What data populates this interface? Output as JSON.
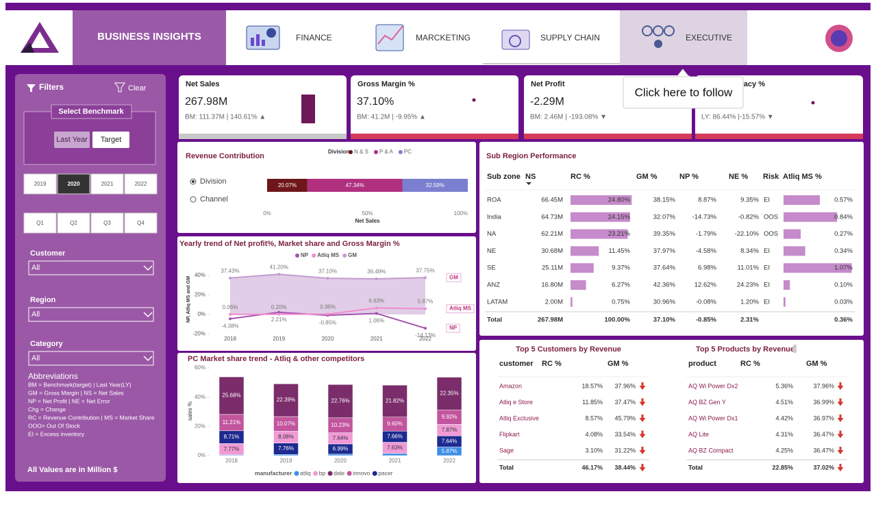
{
  "header": {
    "title": "BUSINESS INSIGHTS",
    "tabs": [
      "FINANCE",
      "MARCKETING",
      "SUPPLY CHAIN",
      "EXECUTIVE"
    ],
    "tooltip": "Click here to follow"
  },
  "filters": {
    "title": "Filters",
    "clear": "Clear",
    "benchmark_title": "Select Benchmark",
    "benchmark_options": [
      "Last Year",
      "Target"
    ],
    "years": [
      "2019",
      "2020",
      "2021",
      "2022"
    ],
    "selected_year": "2020",
    "quarters": [
      "Q1",
      "Q2",
      "Q3",
      "Q4"
    ],
    "dropdowns": [
      {
        "label": "Customer",
        "value": "All"
      },
      {
        "label": "Region",
        "value": "All"
      },
      {
        "label": "Category",
        "value": "All"
      }
    ],
    "abbreviations_title": "Abbreviations",
    "abbreviations": [
      "BM = Benchmark(target) | Last Year(LY)",
      "GM = Gross Margin | NS = Net Sales",
      "NP = Net Profit | NE = Net Error",
      "Chg = Change",
      "RC = Revenue Contribution | MS = Market Share",
      "OOO= Out Of Stock",
      "EI = Excess inventory"
    ],
    "footnote": "All Values are in Million $"
  },
  "kpis": [
    {
      "title": "Net Sales",
      "value": "267.98M",
      "comparison": "BM: 111.37M | 140.61% ▲"
    },
    {
      "title": "Gross Margin %",
      "value": "37.10%",
      "comparison": "BM: 41.2M | -9.95% ▲"
    },
    {
      "title": "Net Profit",
      "value": "-2.29M",
      "comparison": "BM: 2.46M | -193.08% ▼"
    },
    {
      "title": "Forecast Accuracy %",
      "comparison": "LY: 86.44% |-15.57% ▼"
    }
  ],
  "revenue_controls": [
    "Division",
    "Channel"
  ],
  "chart_data": [
    {
      "type": "bar",
      "orientation": "horizontal",
      "stacked": true,
      "title": "Revenue Contribution",
      "legend_title": "Division",
      "categories": [
        null
      ],
      "series": [
        {
          "name": "N & S",
          "color": "#6e1619",
          "values": [
            20.07
          ],
          "value_labels": [
            "20.07%"
          ]
        },
        {
          "name": "P & A",
          "color": "#b0307f",
          "values": [
            47.34
          ],
          "value_labels": [
            "47.34%"
          ]
        },
        {
          "name": "PC",
          "color": "#7b7fcf",
          "values": [
            32.59
          ],
          "value_labels": [
            "32.59%"
          ]
        }
      ],
      "xlim": [
        0,
        100
      ],
      "xticks": [
        {
          "value": 0,
          "label": "0%"
        },
        {
          "value": 50,
          "label": "50%"
        },
        {
          "value": 100,
          "label": "100%"
        }
      ],
      "xlabel": "Net Sales"
    },
    {
      "type": "line",
      "title": "Yearly trend of Net profit%, Market share and Gross Margin %",
      "categories": [
        "2018",
        "2019",
        "2020",
        "2021",
        "2022"
      ],
      "ylabel": "NP, Atliq MS and GM",
      "ylim": [
        -22,
        46
      ],
      "yticks": [
        {
          "value": -20,
          "label": "-20%"
        },
        {
          "value": 0,
          "label": "0%"
        },
        {
          "value": 20,
          "label": "20%"
        },
        {
          "value": 40,
          "label": "40%"
        }
      ],
      "series": [
        {
          "name": "NP",
          "color": "#a452ad",
          "values": [
            -4.38,
            2.21,
            -0.85,
            1.06,
            -14.13
          ],
          "value_labels": [
            "-4.38%",
            "2.21%",
            "-0.85%",
            "1.06%",
            "-14.13%"
          ]
        },
        {
          "name": "Atliq MS",
          "color": "#f08ccf",
          "values": [
            0.06,
            0.2,
            0.36,
            6.63,
            5.87
          ],
          "value_labels": [
            "0.06%",
            "0.20%",
            "0.36%",
            "6.63%",
            "5.87%"
          ]
        },
        {
          "name": "GM",
          "color": "#c49bd0",
          "fill": true,
          "values": [
            37.43,
            41.2,
            37.1,
            36.49,
            37.75
          ],
          "value_labels": [
            "37.43%",
            "41.20%",
            "37.10%",
            "36.49%",
            "37.75%"
          ]
        }
      ]
    },
    {
      "type": "ribbon",
      "title": "PC Market share trend - Atliq & other competitors",
      "legend_title": "manufacturer",
      "categories": [
        "2018",
        "2019",
        "2020",
        "2021",
        "2022"
      ],
      "ylabel": "sales %",
      "ylim": [
        0,
        60
      ],
      "yticks": [
        {
          "value": 0,
          "label": "0%"
        },
        {
          "value": 20,
          "label": "20%"
        },
        {
          "value": 40,
          "label": "40%"
        },
        {
          "value": 60,
          "label": "60%"
        }
      ],
      "series": [
        {
          "name": "atliq",
          "color": "#3d8ee8",
          "values": [
            0.5,
            0.8,
            1.0,
            1.5,
            5.87
          ],
          "value_labels": [
            null,
            null,
            null,
            null,
            "5.87%"
          ]
        },
        {
          "name": "bp",
          "color": "#f09ad6",
          "values": [
            7.77,
            8.08,
            7.64,
            7.63,
            7.87
          ],
          "value_labels": [
            "7.77%",
            "8.08%",
            "7.64%",
            "7.63%",
            "7.87%"
          ]
        },
        {
          "name": "dale",
          "color": "#7a2d6a",
          "values": [
            25.68,
            22.39,
            22.76,
            21.82,
            22.35
          ],
          "value_labels": [
            "25.68%",
            "22.39%",
            "22.76%",
            "21.82%",
            "22.35%"
          ]
        },
        {
          "name": "innovo",
          "color": "#c2559e",
          "values": [
            11.21,
            10.07,
            10.23,
            9.6,
            9.92
          ],
          "value_labels": [
            "11.21%",
            "10.07%",
            "10.23%",
            "9.60%",
            "9.92%"
          ]
        },
        {
          "name": "pacer",
          "color": "#1d2a8f",
          "values": [
            8.71,
            7.76,
            6.99,
            7.66,
            7.64
          ],
          "value_labels": [
            "8.71%",
            "7.76%",
            "6.99%",
            "7.66%",
            "7.64%"
          ]
        }
      ]
    }
  ],
  "sub_region": {
    "title": "Sub Region Performance",
    "columns": [
      "Sub zone",
      "NS",
      "RC %",
      "GM %",
      "NP %",
      "NE %",
      "Risk",
      "Atliq MS %"
    ],
    "rows": [
      [
        "ROA",
        "66.45M",
        "24.80%",
        "38.15%",
        "8.87%",
        "9.35%",
        "EI",
        "0.57%"
      ],
      [
        "India",
        "64.73M",
        "24.15%",
        "32.07%",
        "-14.73%",
        "-0.82%",
        "OOS",
        "0.84%"
      ],
      [
        "NA",
        "62.21M",
        "23.21%",
        "39.35%",
        "-1.79%",
        "-22.10%",
        "OOS",
        "0.27%"
      ],
      [
        "NE",
        "30.68M",
        "11.45%",
        "37.97%",
        "-4.58%",
        "8.34%",
        "EI",
        "0.34%"
      ],
      [
        "SE",
        "25.11M",
        "9.37%",
        "37.64%",
        "6.98%",
        "11.01%",
        "EI",
        "1.07%"
      ],
      [
        "ANZ",
        "16.80M",
        "6.27%",
        "42.36%",
        "12.62%",
        "24.23%",
        "EI",
        "0.10%"
      ],
      [
        "LATAM",
        "2.00M",
        "0.75%",
        "30.96%",
        "-0.08%",
        "1.20%",
        "EI",
        "0.03%"
      ],
      [
        "Total",
        "267.98M",
        "100.00%",
        "37.10%",
        "-0.85%",
        "2.31%",
        null,
        "0.36%"
      ]
    ]
  },
  "top_customers": {
    "title": "Top 5 Customers by Revenue",
    "columns": [
      "customer",
      "RC %",
      "GM %"
    ],
    "rows": [
      [
        "Amazon",
        "18.57%",
        "37.96%"
      ],
      [
        "Atliq e Store",
        "11.85%",
        "37.47%"
      ],
      [
        "Atliq Exclusive",
        "8.57%",
        "45.79%"
      ],
      [
        "Flipkart",
        "4.08%",
        "33.54%"
      ],
      [
        "Sage",
        "3.10%",
        "31.22%"
      ],
      [
        "Total",
        "46.17%",
        "38.44%"
      ]
    ]
  },
  "top_products": {
    "title": "Top 5 Products by Revenue",
    "columns": [
      "product",
      "RC %",
      "GM %"
    ],
    "rows": [
      [
        "AQ Wi Power Dx2",
        "5.36%",
        "37.96%"
      ],
      [
        "AQ BZ Gen Y",
        "4.51%",
        "36.99%"
      ],
      [
        "AQ Wi Power Dx1",
        "4.42%",
        "36.97%"
      ],
      [
        "AQ Lite",
        "4.31%",
        "36.47%"
      ],
      [
        "AQ BZ Compact",
        "4.25%",
        "36.47%"
      ],
      [
        "Total",
        "22.85%",
        "37.02%"
      ]
    ]
  }
}
